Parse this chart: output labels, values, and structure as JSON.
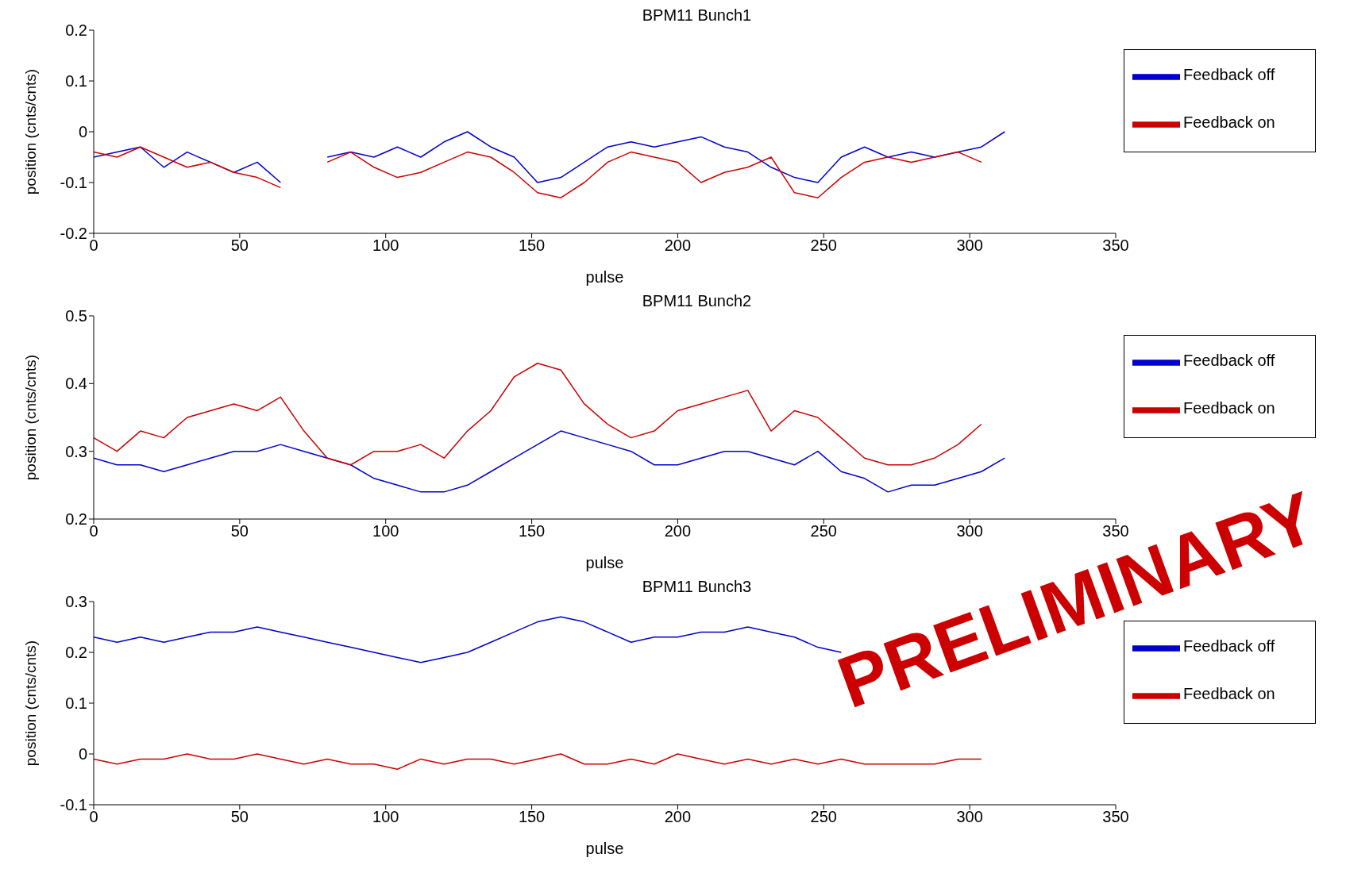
{
  "chart_data": [
    {
      "type": "line",
      "title": "BPM11 Bunch1",
      "xlabel": "pulse",
      "ylabel": "position (cnts/cnts)",
      "xlim": [
        0,
        350
      ],
      "xticks": [
        0,
        50,
        100,
        150,
        200,
        250,
        300,
        350
      ],
      "ylim": [
        -0.2,
        0.2
      ],
      "yticks": [
        -0.2,
        -0.1,
        0,
        0.1,
        0.2
      ],
      "legend": "top right",
      "marker": "none",
      "x": [
        0,
        8,
        16,
        24,
        32,
        40,
        48,
        56,
        64,
        72,
        80,
        88,
        96,
        104,
        112,
        120,
        128,
        136,
        144,
        152,
        160,
        168,
        176,
        184,
        192,
        200,
        208,
        216,
        224,
        232,
        240,
        248,
        256,
        264,
        272,
        280,
        288,
        296,
        304,
        312
      ],
      "series": [
        {
          "name": "Feedback off",
          "color": "#0000cc",
          "values": [
            -0.05,
            -0.04,
            -0.03,
            -0.07,
            -0.04,
            -0.06,
            -0.08,
            -0.06,
            -0.1,
            null,
            -0.05,
            -0.04,
            -0.05,
            -0.03,
            -0.05,
            -0.02,
            0,
            -0.03,
            -0.05,
            -0.1,
            -0.09,
            -0.06,
            -0.03,
            -0.02,
            -0.03,
            -0.02,
            -0.01,
            -0.03,
            -0.04,
            -0.07,
            -0.09,
            -0.1,
            -0.05,
            -0.03,
            -0.05,
            -0.04,
            -0.05,
            -0.04,
            -0.03,
            0
          ]
        },
        {
          "name": "Feedback on",
          "color": "#cc0000",
          "values": [
            -0.04,
            -0.05,
            -0.03,
            -0.05,
            -0.07,
            -0.06,
            -0.08,
            -0.09,
            -0.11,
            null,
            -0.06,
            -0.04,
            -0.07,
            -0.09,
            -0.08,
            -0.06,
            -0.04,
            -0.05,
            -0.08,
            -0.12,
            -0.13,
            -0.1,
            -0.06,
            -0.04,
            -0.05,
            -0.06,
            -0.1,
            -0.08,
            -0.07,
            -0.05,
            -0.12,
            -0.13,
            -0.09,
            -0.06,
            -0.05,
            -0.06,
            -0.05,
            -0.04,
            -0.06,
            null
          ]
        }
      ]
    },
    {
      "type": "line",
      "title": "BPM11 Bunch2",
      "xlabel": "pulse",
      "ylabel": "position (cnts/cnts)",
      "xlim": [
        0,
        350
      ],
      "xticks": [
        0,
        50,
        100,
        150,
        200,
        250,
        300,
        350
      ],
      "ylim": [
        0.2,
        0.5
      ],
      "yticks": [
        0.2,
        0.3,
        0.4,
        0.5
      ],
      "legend": "top right",
      "marker": "none",
      "x": [
        0,
        8,
        16,
        24,
        32,
        40,
        48,
        56,
        64,
        72,
        80,
        88,
        96,
        104,
        112,
        120,
        128,
        136,
        144,
        152,
        160,
        168,
        176,
        184,
        192,
        200,
        208,
        216,
        224,
        232,
        240,
        248,
        256,
        264,
        272,
        280,
        288,
        296,
        304,
        312
      ],
      "series": [
        {
          "name": "Feedback off",
          "color": "#0000cc",
          "values": [
            0.29,
            0.28,
            0.28,
            0.27,
            0.28,
            0.29,
            0.3,
            0.3,
            0.31,
            0.3,
            0.29,
            0.28,
            0.26,
            0.25,
            0.24,
            0.24,
            0.25,
            0.27,
            0.29,
            0.31,
            0.33,
            0.32,
            0.31,
            0.3,
            0.28,
            0.28,
            0.29,
            0.3,
            0.3,
            0.29,
            0.28,
            0.3,
            0.27,
            0.26,
            0.24,
            0.25,
            0.25,
            0.26,
            0.27,
            0.29
          ]
        },
        {
          "name": "Feedback on",
          "color": "#cc0000",
          "values": [
            0.32,
            0.3,
            0.33,
            0.32,
            0.35,
            0.36,
            0.37,
            0.36,
            0.38,
            0.33,
            0.29,
            0.28,
            0.3,
            0.3,
            0.31,
            0.29,
            0.33,
            0.36,
            0.41,
            0.43,
            0.42,
            0.37,
            0.34,
            0.32,
            0.33,
            0.36,
            0.37,
            0.38,
            0.39,
            0.33,
            0.36,
            0.35,
            0.32,
            0.29,
            0.28,
            0.28,
            0.29,
            0.31,
            0.34,
            null
          ]
        }
      ]
    },
    {
      "type": "line",
      "title": "BPM11 Bunch3",
      "xlabel": "pulse",
      "ylabel": "position (cnts/cnts)",
      "xlim": [
        0,
        350
      ],
      "xticks": [
        0,
        50,
        100,
        150,
        200,
        250,
        300,
        350
      ],
      "ylim": [
        -0.1,
        0.3
      ],
      "yticks": [
        -0.1,
        0,
        0.1,
        0.2,
        0.3
      ],
      "legend": "top right",
      "marker": "none",
      "annotations": [
        "PRELIMINARY"
      ],
      "x": [
        0,
        8,
        16,
        24,
        32,
        40,
        48,
        56,
        64,
        72,
        80,
        88,
        96,
        104,
        112,
        120,
        128,
        136,
        144,
        152,
        160,
        168,
        176,
        184,
        192,
        200,
        208,
        216,
        224,
        232,
        240,
        248,
        256,
        264,
        272,
        280,
        288,
        296,
        304
      ],
      "series": [
        {
          "name": "Feedback off",
          "color": "#0000cc",
          "values": [
            0.23,
            0.22,
            0.23,
            0.22,
            0.23,
            0.24,
            0.24,
            0.25,
            0.24,
            0.23,
            0.22,
            0.21,
            0.2,
            0.19,
            0.18,
            0.19,
            0.2,
            0.22,
            0.24,
            0.26,
            0.27,
            0.26,
            0.24,
            0.22,
            0.23,
            0.23,
            0.24,
            0.24,
            0.25,
            0.24,
            0.23,
            0.21,
            0.2,
            null,
            null,
            null,
            null,
            null,
            null
          ]
        },
        {
          "name": "Feedback on",
          "color": "#cc0000",
          "values": [
            -0.01,
            -0.02,
            -0.01,
            -0.01,
            0,
            -0.01,
            -0.01,
            0,
            -0.01,
            -0.02,
            -0.01,
            -0.02,
            -0.02,
            -0.03,
            -0.01,
            -0.02,
            -0.01,
            -0.01,
            -0.02,
            -0.01,
            0,
            -0.02,
            -0.02,
            -0.01,
            -0.02,
            0,
            -0.01,
            -0.02,
            -0.01,
            -0.02,
            -0.01,
            -0.02,
            -0.01,
            -0.02,
            -0.02,
            -0.02,
            -0.02,
            -0.01,
            -0.01
          ]
        }
      ]
    }
  ]
}
